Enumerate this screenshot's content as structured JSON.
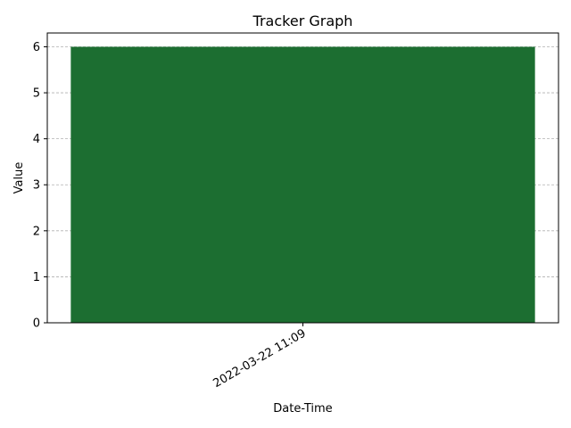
{
  "chart_data": {
    "type": "bar",
    "title": "Tracker Graph",
    "xlabel": "Date-Time",
    "ylabel": "Value",
    "categories": [
      "2022-03-22 11:09"
    ],
    "values": [
      6
    ],
    "ylim": [
      0,
      6.3
    ],
    "yticks": [
      0,
      1,
      2,
      3,
      4,
      5,
      6
    ],
    "grid": "y-dashed",
    "bar_color": "#1c6e31",
    "grid_color": "#b0b0b0"
  }
}
